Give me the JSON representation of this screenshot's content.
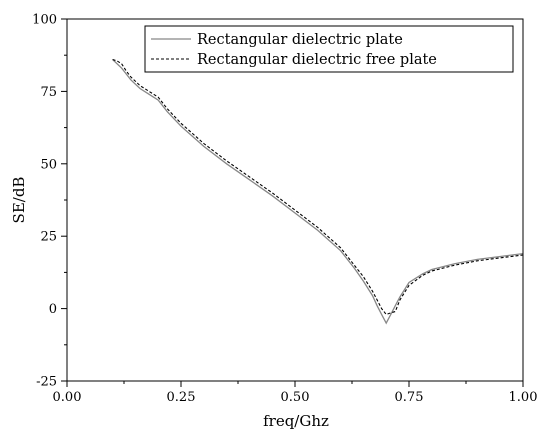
{
  "chart_data": {
    "type": "line",
    "title": "",
    "xlabel": "freq/Ghz",
    "ylabel": "SE/dB",
    "xlim": [
      0.0,
      1.0
    ],
    "ylim": [
      -25,
      100
    ],
    "x_ticks": [
      "0.00",
      "0.25",
      "0.50",
      "0.75",
      "1.00"
    ],
    "y_ticks": [
      "-25",
      "0",
      "25",
      "50",
      "75",
      "100"
    ],
    "grid": false,
    "legend_position": "top-right",
    "series": [
      {
        "name": "Rectangular dielectric plate",
        "style": "solid",
        "color": "#888888",
        "x": [
          0.1,
          0.12,
          0.14,
          0.16,
          0.18,
          0.2,
          0.22,
          0.25,
          0.3,
          0.35,
          0.4,
          0.45,
          0.5,
          0.55,
          0.6,
          0.63,
          0.65,
          0.67,
          0.68,
          0.69,
          0.7,
          0.71,
          0.72,
          0.73,
          0.75,
          0.78,
          0.8,
          0.85,
          0.9,
          0.95,
          1.0
        ],
        "y": [
          86,
          83,
          79,
          76,
          74,
          72,
          68,
          63,
          56,
          50,
          44.5,
          39,
          33,
          27,
          20,
          14,
          9.5,
          4.5,
          1,
          -2,
          -5,
          -2,
          1,
          4,
          9,
          12,
          13.5,
          15.5,
          17,
          18,
          19
        ]
      },
      {
        "name": "Rectangular dielectric free plate",
        "style": "dashed",
        "color": "#000000",
        "x": [
          0.1,
          0.11,
          0.12,
          0.13,
          0.14,
          0.16,
          0.18,
          0.2,
          0.22,
          0.25,
          0.3,
          0.35,
          0.4,
          0.45,
          0.5,
          0.55,
          0.6,
          0.63,
          0.65,
          0.67,
          0.68,
          0.69,
          0.7,
          0.71,
          0.72,
          0.73,
          0.75,
          0.78,
          0.8,
          0.85,
          0.9,
          0.95,
          1.0
        ],
        "y": [
          86,
          85.5,
          84.5,
          82,
          80,
          77,
          75,
          73,
          69,
          64,
          57,
          51,
          45.5,
          40,
          34,
          28,
          21,
          15,
          11,
          6,
          3,
          0,
          -2,
          -1.5,
          -1,
          3,
          8,
          11.5,
          13,
          15,
          16.5,
          17.5,
          18.5
        ]
      }
    ]
  }
}
